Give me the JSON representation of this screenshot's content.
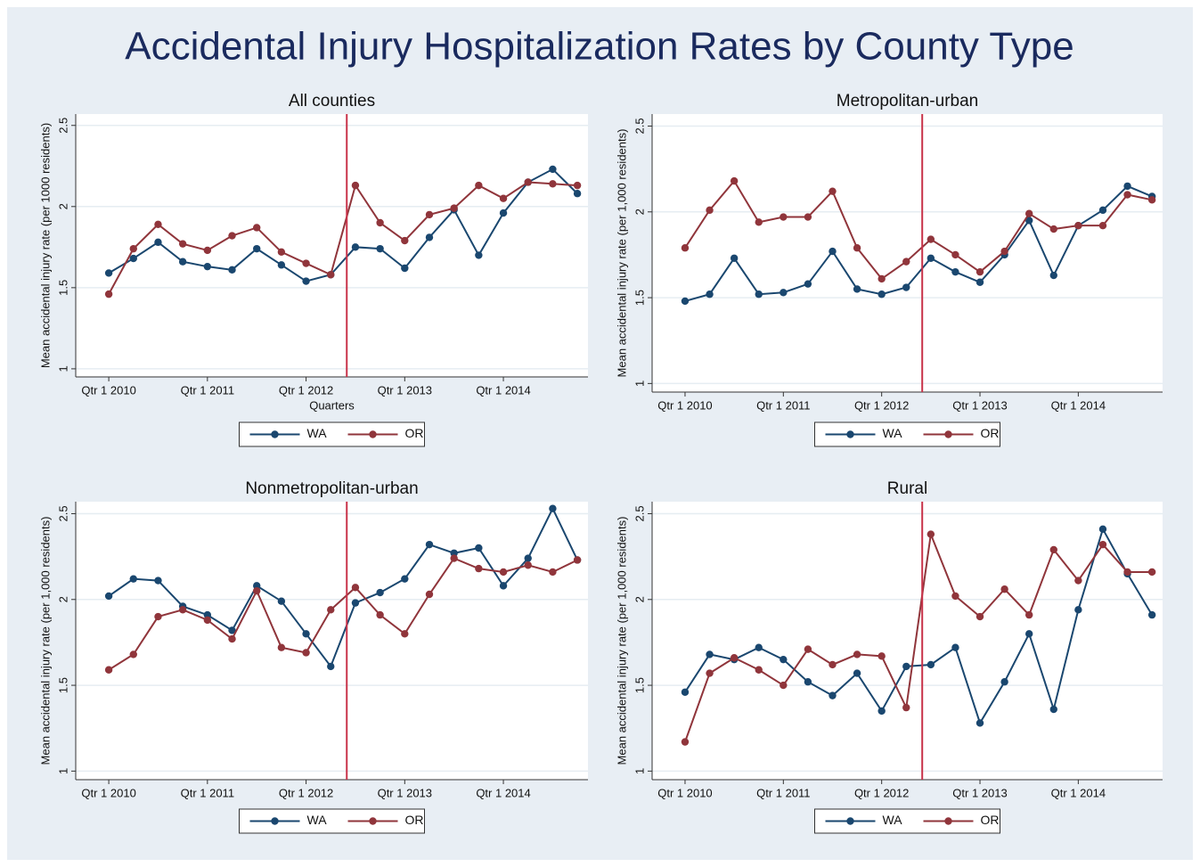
{
  "title": "Accidental Injury Hospitalization Rates by County Type",
  "chart_data": [
    {
      "type": "line",
      "title": "All counties",
      "x_label": "Quarters",
      "y_label": "Mean accidental injury rate (per 1000 residents)",
      "categories": [
        "Qtr 1 2010",
        null,
        null,
        null,
        "Qtr 1 2011",
        null,
        null,
        null,
        "Qtr 1 2012",
        null,
        null,
        null,
        "Qtr 1 2013",
        null,
        null,
        null,
        "Qtr 1 2014",
        null,
        null,
        null
      ],
      "series": [
        {
          "name": "WA",
          "color": "#1a476f",
          "values": [
            1.59,
            1.68,
            1.78,
            1.66,
            1.63,
            1.61,
            1.74,
            1.64,
            1.54,
            1.58,
            1.75,
            1.74,
            1.62,
            1.81,
            1.98,
            1.7,
            1.96,
            2.15,
            2.23,
            2.08
          ]
        },
        {
          "name": "OR",
          "color": "#90353b",
          "values": [
            1.46,
            1.74,
            1.89,
            1.77,
            1.73,
            1.82,
            1.87,
            1.72,
            1.65,
            1.58,
            2.13,
            1.9,
            1.79,
            1.95,
            1.99,
            2.13,
            2.05,
            2.15,
            2.14,
            2.13
          ]
        }
      ],
      "reference_line": {
        "x": 9.65,
        "color": "#c8334a"
      },
      "ylim": [
        0.95,
        2.57
      ],
      "yticks": [
        1,
        1.5,
        2,
        2.5
      ],
      "grid": true,
      "legend": "bottom"
    },
    {
      "type": "line",
      "title": "Metropolitan-urban",
      "y_label": "Mean accidental injury rate (per 1,000 residents)",
      "categories": [
        "Qtr 1 2010",
        null,
        null,
        null,
        "Qtr 1 2011",
        null,
        null,
        null,
        "Qtr 1 2012",
        null,
        null,
        null,
        "Qtr 1 2013",
        null,
        null,
        null,
        "Qtr 1 2014",
        null,
        null,
        null
      ],
      "series": [
        {
          "name": "WA",
          "color": "#1a476f",
          "values": [
            1.48,
            1.52,
            1.73,
            1.52,
            1.53,
            1.58,
            1.77,
            1.55,
            1.52,
            1.56,
            1.73,
            1.65,
            1.59,
            1.75,
            1.95,
            1.63,
            1.92,
            2.01,
            2.15,
            2.09
          ]
        },
        {
          "name": "OR",
          "color": "#90353b",
          "values": [
            1.79,
            2.01,
            2.18,
            1.94,
            1.97,
            1.97,
            2.12,
            1.79,
            1.61,
            1.71,
            1.84,
            1.75,
            1.65,
            1.77,
            1.99,
            1.9,
            1.92,
            1.92,
            2.1,
            2.07
          ]
        }
      ],
      "reference_line": {
        "x": 9.65,
        "color": "#c8334a"
      },
      "ylim": [
        0.95,
        2.57
      ],
      "yticks": [
        1,
        1.5,
        2,
        2.5
      ],
      "grid": true,
      "legend": "bottom"
    },
    {
      "type": "line",
      "title": "Nonmetropolitan-urban",
      "y_label": "Mean accidental injury rate (per 1,000 residents)",
      "categories": [
        "Qtr 1 2010",
        null,
        null,
        null,
        "Qtr 1 2011",
        null,
        null,
        null,
        "Qtr 1 2012",
        null,
        null,
        null,
        "Qtr 1 2013",
        null,
        null,
        null,
        "Qtr 1 2014",
        null,
        null,
        null
      ],
      "series": [
        {
          "name": "WA",
          "color": "#1a476f",
          "values": [
            2.02,
            2.12,
            2.11,
            1.96,
            1.91,
            1.82,
            2.08,
            1.99,
            1.8,
            1.61,
            1.98,
            2.04,
            2.12,
            2.32,
            2.27,
            2.3,
            2.08,
            2.24,
            2.53,
            2.23
          ]
        },
        {
          "name": "OR",
          "color": "#90353b",
          "values": [
            1.59,
            1.68,
            1.9,
            1.94,
            1.88,
            1.77,
            2.05,
            1.72,
            1.69,
            1.94,
            2.07,
            1.91,
            1.8,
            2.03,
            2.24,
            2.18,
            2.16,
            2.2,
            2.16,
            2.23
          ]
        }
      ],
      "reference_line": {
        "x": 9.65,
        "color": "#c8334a"
      },
      "ylim": [
        0.95,
        2.57
      ],
      "yticks": [
        1,
        1.5,
        2,
        2.5
      ],
      "grid": true,
      "legend": "bottom"
    },
    {
      "type": "line",
      "title": "Rural",
      "y_label": "Mean accidental injury rate (per 1,000 residents)",
      "categories": [
        "Qtr 1 2010",
        null,
        null,
        null,
        "Qtr 1 2011",
        null,
        null,
        null,
        "Qtr 1 2012",
        null,
        null,
        null,
        "Qtr 1 2013",
        null,
        null,
        null,
        "Qtr 1 2014",
        null,
        null,
        null
      ],
      "series": [
        {
          "name": "WA",
          "color": "#1a476f",
          "values": [
            1.46,
            1.68,
            1.65,
            1.72,
            1.65,
            1.52,
            1.44,
            1.57,
            1.35,
            1.61,
            1.62,
            1.72,
            1.28,
            1.52,
            1.8,
            1.36,
            1.94,
            2.41,
            2.15,
            1.91
          ]
        },
        {
          "name": "OR",
          "color": "#90353b",
          "values": [
            1.17,
            1.57,
            1.66,
            1.59,
            1.5,
            1.71,
            1.62,
            1.68,
            1.67,
            1.37,
            2.38,
            2.02,
            1.9,
            2.06,
            1.91,
            2.29,
            2.11,
            2.32,
            2.16,
            2.16
          ]
        }
      ],
      "reference_line": {
        "x": 9.65,
        "color": "#c8334a"
      },
      "ylim": [
        0.95,
        2.57
      ],
      "yticks": [
        1,
        1.5,
        2,
        2.5
      ],
      "grid": true,
      "legend": "bottom"
    }
  ]
}
